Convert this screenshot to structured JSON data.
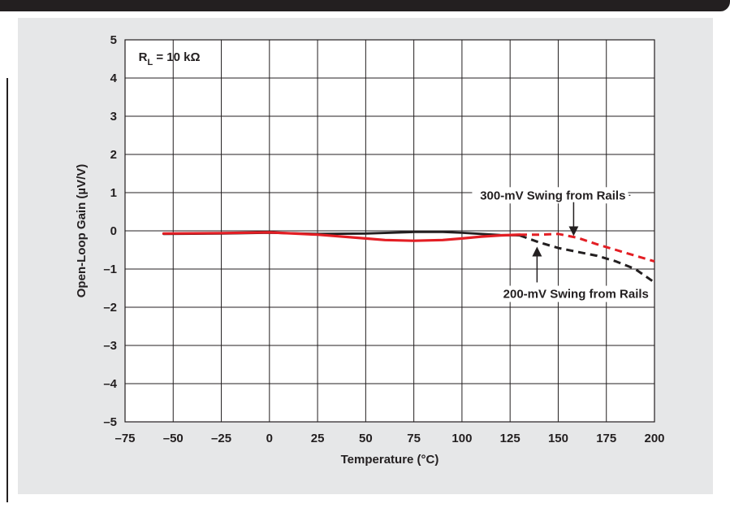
{
  "chart_data": {
    "type": "line",
    "xlabel": "Temperature (°C)",
    "ylabel": "Open-Loop Gain (µV/V)",
    "xlim": [
      -75,
      200
    ],
    "ylim": [
      -5,
      5
    ],
    "x_ticks": [
      -75,
      -50,
      -25,
      0,
      25,
      50,
      75,
      100,
      125,
      150,
      175,
      200
    ],
    "x_tick_labels": [
      "–75",
      "–50",
      "–25",
      "0",
      "25",
      "50",
      "75",
      "100",
      "125",
      "150",
      "175",
      "200"
    ],
    "y_ticks": [
      5,
      4,
      3,
      2,
      1,
      0,
      -1,
      -2,
      -3,
      -4,
      -5
    ],
    "y_tick_labels": [
      "5",
      "4",
      "3",
      "2",
      "1",
      "0",
      "–1",
      "–2",
      "–3",
      "–4",
      "–5"
    ],
    "grid": true,
    "condition_label": {
      "main": "R",
      "sub": "L",
      "rest": " = 10 kΩ"
    },
    "series": [
      {
        "name": "200-mV Swing from Rails",
        "color": "#231f20",
        "solid": {
          "x": [
            -55,
            -25,
            0,
            25,
            50,
            75,
            90,
            100,
            110,
            120,
            130
          ],
          "y": [
            -0.08,
            -0.07,
            -0.05,
            -0.08,
            -0.07,
            -0.03,
            -0.03,
            -0.05,
            -0.08,
            -0.11,
            -0.12
          ]
        },
        "dashed": {
          "x": [
            130,
            140,
            150,
            160,
            170,
            180,
            190,
            200
          ],
          "y": [
            -0.12,
            -0.3,
            -0.45,
            -0.55,
            -0.65,
            -0.8,
            -1.0,
            -1.35
          ]
        }
      },
      {
        "name": "300-mV Swing from Rails",
        "color": "#e31e24",
        "solid": {
          "x": [
            -55,
            -25,
            0,
            25,
            50,
            60,
            75,
            90,
            100,
            110,
            120,
            130
          ],
          "y": [
            -0.07,
            -0.06,
            -0.04,
            -0.1,
            -0.2,
            -0.24,
            -0.26,
            -0.24,
            -0.2,
            -0.15,
            -0.12,
            -0.1
          ]
        },
        "dashed": {
          "x": [
            130,
            140,
            150,
            160,
            170,
            180,
            190,
            200
          ],
          "y": [
            -0.1,
            -0.1,
            -0.08,
            -0.18,
            -0.35,
            -0.5,
            -0.65,
            -0.8
          ]
        }
      }
    ],
    "annotations": [
      {
        "text": "300-mV Swing from Rails",
        "series": 1,
        "arrow_to": [
          158,
          -0.2
        ]
      },
      {
        "text": "200-mV Swing from Rails",
        "series": 0,
        "arrow_to": [
          139,
          -0.35
        ]
      }
    ]
  }
}
